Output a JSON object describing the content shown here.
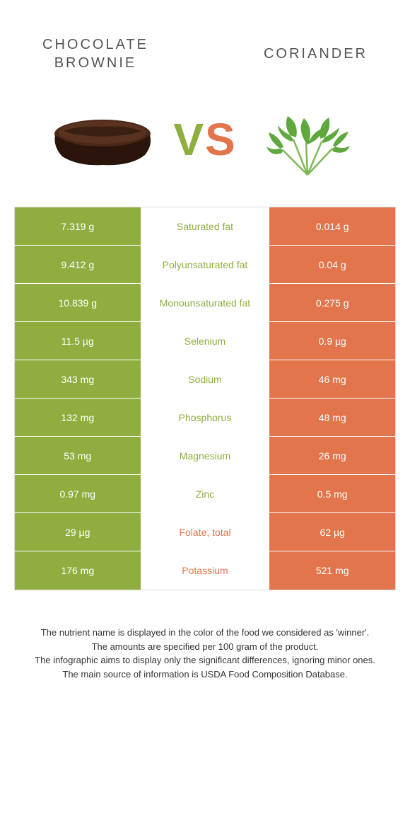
{
  "header": {
    "left_line1": "CHOCOLATE",
    "left_line2": "BROWNIE",
    "right": "CORIANDER"
  },
  "vs": {
    "v": "V",
    "s": "S"
  },
  "colors": {
    "green": "#8fae3f",
    "orange": "#e2754b",
    "brownie_top": "#4a2818",
    "brownie_body": "#2b140c",
    "coriander_leaf": "#5fa83e",
    "coriander_stem": "#7fb85a"
  },
  "rows": [
    {
      "left": "7.319 g",
      "label": "Saturated fat",
      "winner": "green",
      "right": "0.014 g"
    },
    {
      "left": "9.412 g",
      "label": "Polyunsaturated fat",
      "winner": "green",
      "right": "0.04 g"
    },
    {
      "left": "10.839 g",
      "label": "Monounsaturated fat",
      "winner": "green",
      "right": "0.275 g"
    },
    {
      "left": "11.5 µg",
      "label": "Selenium",
      "winner": "green",
      "right": "0.9 µg"
    },
    {
      "left": "343 mg",
      "label": "Sodium",
      "winner": "green",
      "right": "46 mg"
    },
    {
      "left": "132 mg",
      "label": "Phosphorus",
      "winner": "green",
      "right": "48 mg"
    },
    {
      "left": "53 mg",
      "label": "Magnesium",
      "winner": "green",
      "right": "26 mg"
    },
    {
      "left": "0.97 mg",
      "label": "Zinc",
      "winner": "green",
      "right": "0.5 mg"
    },
    {
      "left": "29 µg",
      "label": "Folate, total",
      "winner": "orange",
      "right": "62 µg"
    },
    {
      "left": "176 mg",
      "label": "Potassium",
      "winner": "orange",
      "right": "521 mg"
    }
  ],
  "footer": {
    "l1": "The nutrient name is displayed in the color of the food we considered as 'winner'.",
    "l2": "The amounts are specified per 100 gram of the product.",
    "l3": "The infographic aims to display only the significant differences, ignoring minor ones.",
    "l4": "The main source of information is USDA Food Composition Database."
  }
}
